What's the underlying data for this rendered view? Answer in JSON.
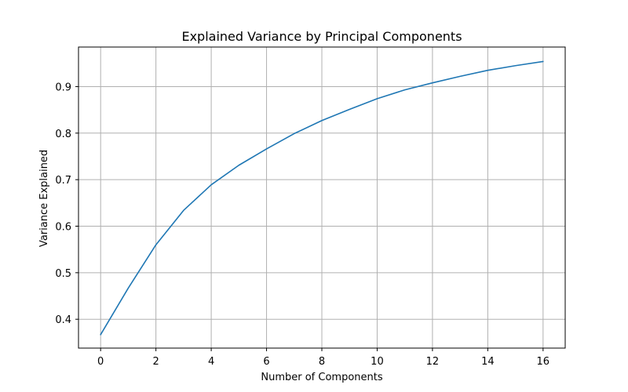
{
  "chart_data": {
    "type": "line",
    "title": "Explained Variance by Principal Components",
    "xlabel": "Number of Components",
    "ylabel": "Variance Explained",
    "grid": true,
    "xlim": [
      -0.8,
      16.8
    ],
    "ylim": [
      0.338,
      0.985
    ],
    "x_ticks": [
      0,
      2,
      4,
      6,
      8,
      10,
      12,
      14,
      16
    ],
    "y_ticks": [
      0.4,
      0.5,
      0.6,
      0.7,
      0.8,
      0.9
    ],
    "series": [
      {
        "color": "#1f77b4",
        "x": [
          0,
          1,
          2,
          3,
          4,
          5,
          6,
          7,
          8,
          9,
          10,
          11,
          12,
          13,
          14,
          15,
          16
        ],
        "y": [
          0.367,
          0.467,
          0.56,
          0.634,
          0.689,
          0.731,
          0.766,
          0.799,
          0.827,
          0.851,
          0.874,
          0.893,
          0.908,
          0.922,
          0.935,
          0.945,
          0.954
        ]
      }
    ],
    "colors": {
      "grid": "#b0b0b0",
      "axis": "#000000",
      "background": "#ffffff"
    }
  }
}
